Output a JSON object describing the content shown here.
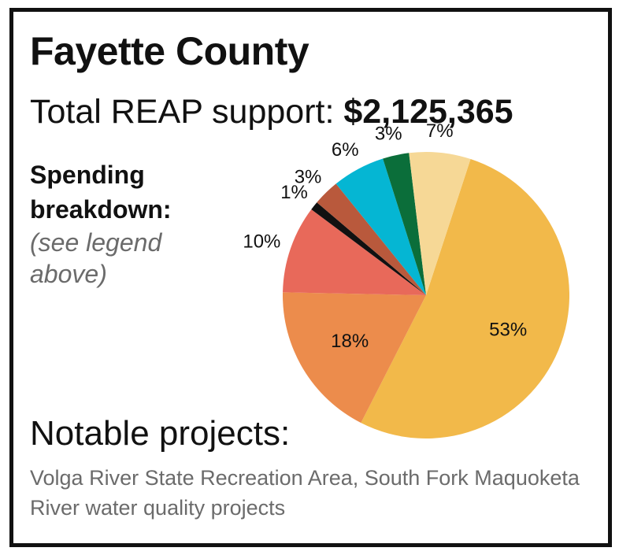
{
  "header": {
    "title": "Fayette County",
    "support_label": "Total REAP support:",
    "support_amount": "$2,125,365"
  },
  "breakdown": {
    "heading_line1": "Spending",
    "heading_line2": "breakdown:",
    "note_line1": "(see legend",
    "note_line2": "above)"
  },
  "projects": {
    "heading": "Notable projects:",
    "text": "Volga River State Recreation Area, South Fork Maquoketa River water quality projects"
  },
  "chart_data": {
    "type": "pie",
    "start_angle": "top, clockwise",
    "slices": [
      {
        "label": "53%",
        "value": 53,
        "color": "#F2B94A"
      },
      {
        "label": "18%",
        "value": 18,
        "color": "#EC8C4C"
      },
      {
        "label": "10%",
        "value": 10,
        "color": "#E8695A"
      },
      {
        "label": "1%",
        "value": 1,
        "color": "#111111"
      },
      {
        "label": "3%",
        "value": 3,
        "color": "#B9593C"
      },
      {
        "label": "6%",
        "value": 6,
        "color": "#05B6D3"
      },
      {
        "label": "3%",
        "value": 3,
        "color": "#0B6E3A"
      },
      {
        "label": "7%",
        "value": 7,
        "color": "#F6D896"
      }
    ]
  }
}
